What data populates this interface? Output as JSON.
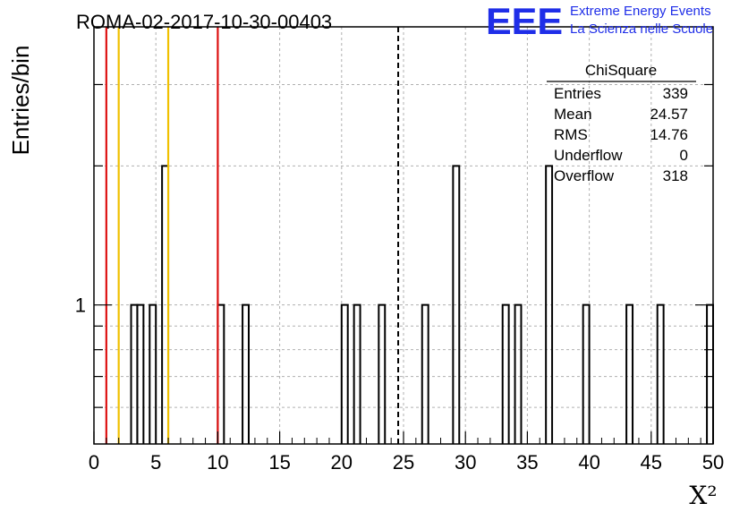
{
  "header": {
    "title": "ROMA-02-2017-10-30-00403",
    "logo_text": "EEE",
    "logo_line1": "Extreme Energy Events",
    "logo_line2": "La Scienza nelle Scuole"
  },
  "stats": {
    "name": "ChiSquare",
    "rows": [
      {
        "label": "Entries",
        "value": "339"
      },
      {
        "label": "Mean",
        "value": "24.57"
      },
      {
        "label": "RMS",
        "value": "14.76"
      },
      {
        "label": "Underflow",
        "value": "0"
      },
      {
        "label": "Overflow",
        "value": "318"
      }
    ]
  },
  "colors": {
    "red": "#dd1111",
    "gold": "#f0c000",
    "logo": "#1f2ee8",
    "grid": "#b0b0b0"
  },
  "chart_data": {
    "type": "bar",
    "title": "ROMA-02-2017-10-30-00403",
    "xlabel": "X²",
    "ylabel": "Entries/bin",
    "xlim": [
      0,
      50
    ],
    "ylog": true,
    "ylim": [
      0.5,
      4
    ],
    "bin_width": 0.5,
    "xticks": [
      0,
      5,
      10,
      15,
      20,
      25,
      30,
      35,
      40,
      45,
      50
    ],
    "yticks": [
      1
    ],
    "bins": [
      {
        "x": 3.0,
        "y": 1
      },
      {
        "x": 3.5,
        "y": 1
      },
      {
        "x": 4.5,
        "y": 1
      },
      {
        "x": 5.5,
        "y": 2
      },
      {
        "x": 10.0,
        "y": 1
      },
      {
        "x": 12.0,
        "y": 1
      },
      {
        "x": 20.0,
        "y": 1
      },
      {
        "x": 21.0,
        "y": 1
      },
      {
        "x": 23.0,
        "y": 1
      },
      {
        "x": 26.5,
        "y": 1
      },
      {
        "x": 29.0,
        "y": 2
      },
      {
        "x": 33.0,
        "y": 1
      },
      {
        "x": 34.0,
        "y": 1
      },
      {
        "x": 36.5,
        "y": 2
      },
      {
        "x": 39.5,
        "y": 1
      },
      {
        "x": 43.0,
        "y": 1
      },
      {
        "x": 45.5,
        "y": 1
      },
      {
        "x": 49.5,
        "y": 1
      }
    ],
    "vertical_lines": [
      {
        "x": 1.0,
        "color": "red"
      },
      {
        "x": 2.0,
        "color": "gold"
      },
      {
        "x": 6.0,
        "color": "gold"
      },
      {
        "x": 10.0,
        "color": "red"
      }
    ],
    "mean_line": 24.57,
    "grid": true
  }
}
